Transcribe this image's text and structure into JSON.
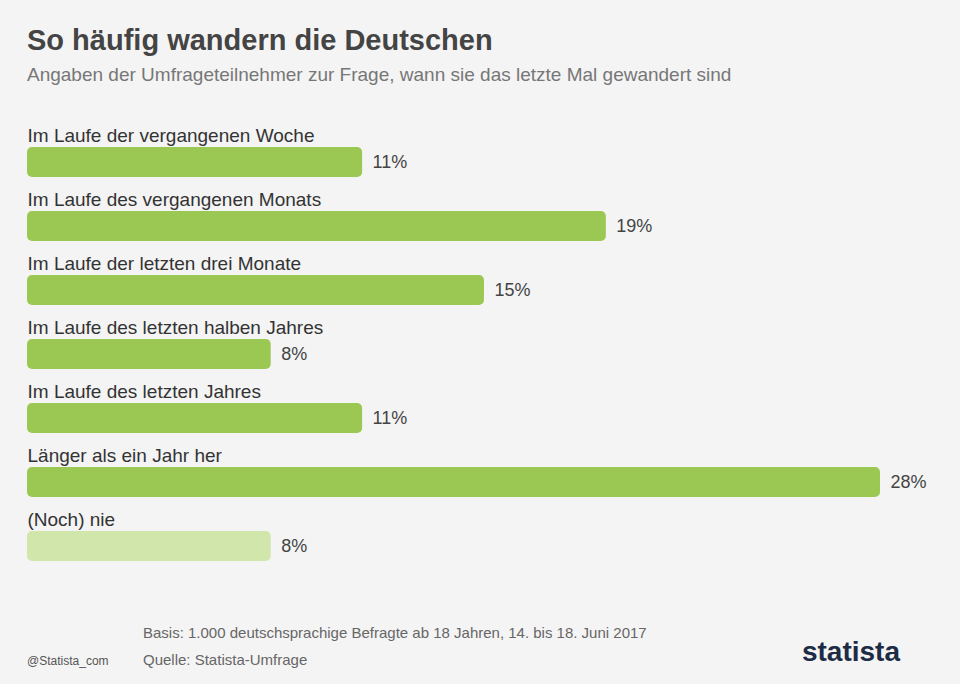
{
  "chart_data": {
    "type": "bar",
    "orientation": "horizontal",
    "title": "So häufig wandern die Deutschen",
    "subtitle": "Angaben der Umfrageteilnehmer zur Frage, wann sie das letzte Mal gewandert sind",
    "categories": [
      "Im Laufe der vergangenen Woche",
      "Im Laufe des vergangenen Monats",
      "Im Laufe der letzten drei Monate",
      "Im Laufe des letzten halben Jahres",
      "Im Laufe des letzten Jahres",
      "Länger als ein Jahr her",
      "(Noch) nie"
    ],
    "values": [
      11,
      19,
      15,
      8,
      11,
      28,
      8
    ],
    "value_labels": [
      "11%",
      "19%",
      "15%",
      "8%",
      "11%",
      "28%",
      "8%"
    ],
    "colors": [
      "#9bc853",
      "#9bc853",
      "#9bc853",
      "#9bc853",
      "#9bc853",
      "#9bc853",
      "#d1e6aa"
    ],
    "xlim": [
      0,
      28
    ],
    "data_labels": true,
    "tick_labels": false,
    "grid": false,
    "caption": "Basis: 1.000 deutschsprachige Befragte ab 18 Jahren, 14. bis 18. Juni 2017",
    "source": "Quelle: Statista-Umfrage",
    "credit": "@Statista_com",
    "brand": "statista"
  }
}
